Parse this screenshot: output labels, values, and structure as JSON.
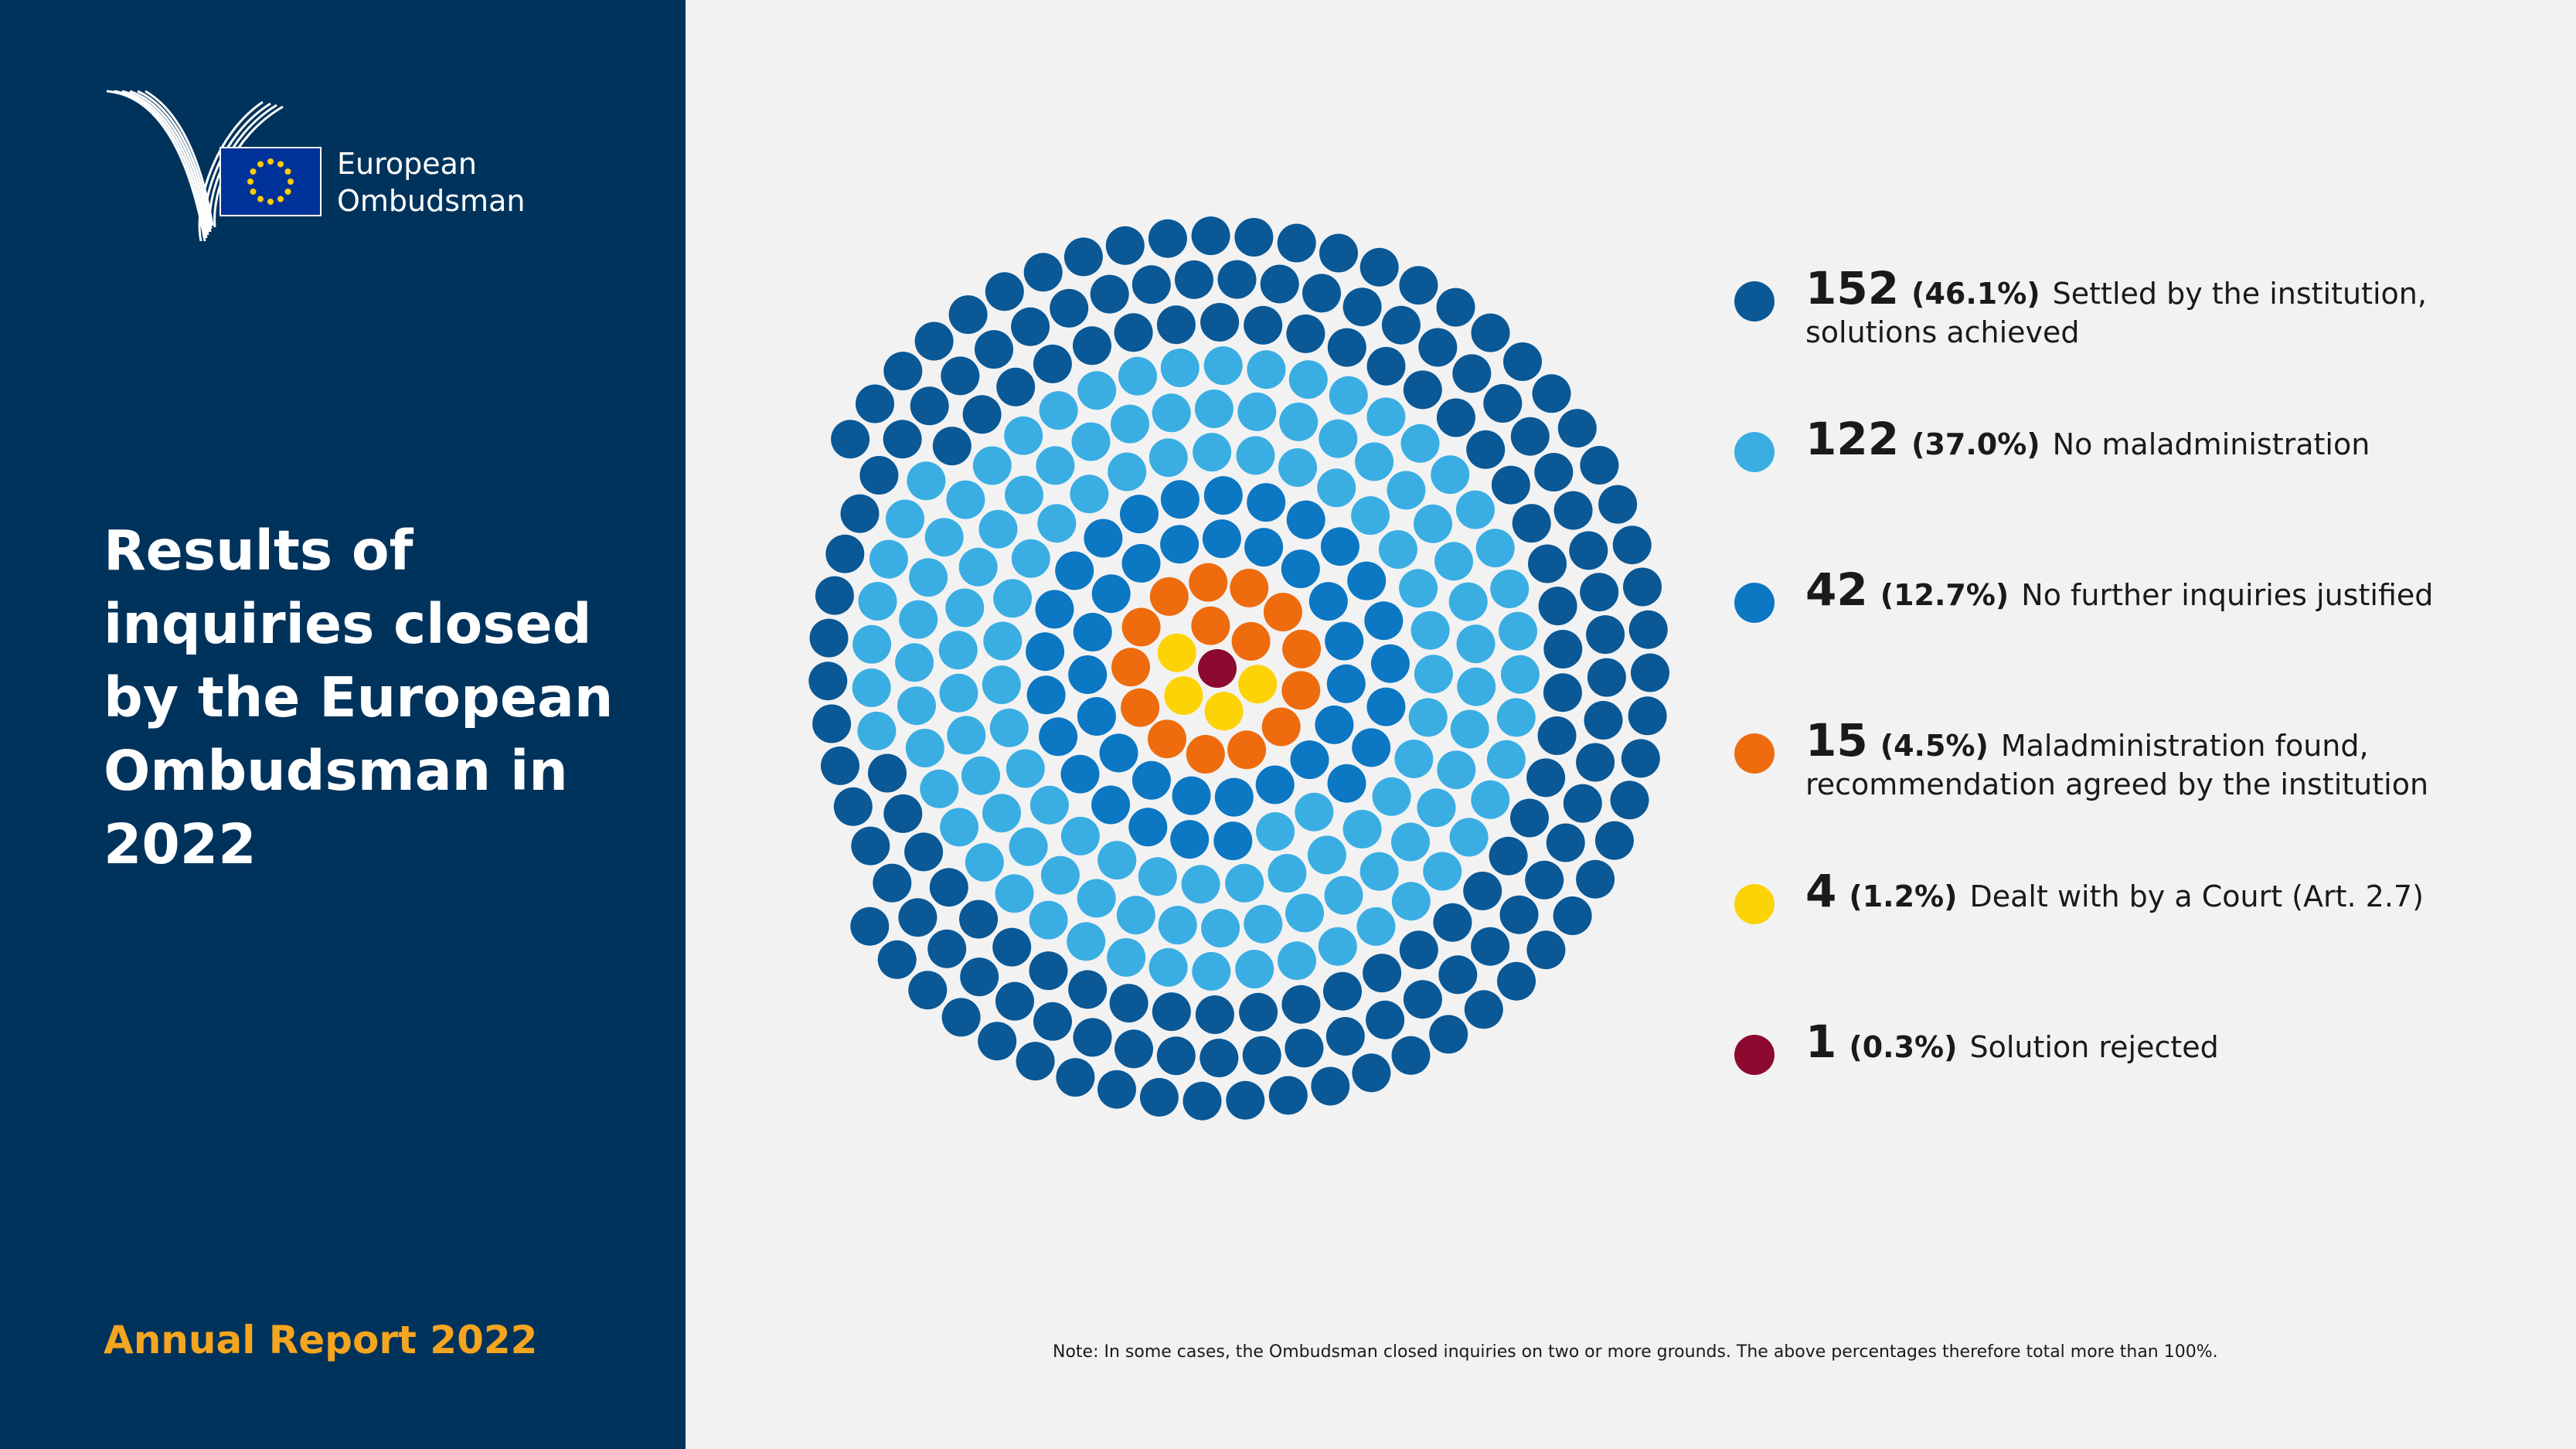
{
  "branding": {
    "org_line1": "European",
    "org_line2": "Ombudsman",
    "flag_icon": "eu-flag-icon",
    "logo_icon": "ombudsman-logo-icon"
  },
  "headline": "Results of inquiries closed by the European Ombudsman in 2022",
  "footer_title": "Annual Report 2022",
  "note": "Note: In some cases, the Ombudsman closed inquiries on two or more grounds. The above percentages therefore total more than 100%.",
  "colors": {
    "sidebar": "#00335c",
    "background": "#f2f2f2",
    "accent_gold": "#f5a51f"
  },
  "chart_data": {
    "type": "dot-matrix",
    "title": "",
    "categories": [
      {
        "count": 152,
        "percent": "(46.1%)",
        "label": "Settled by the institution, solutions achieved",
        "color": "#0a5896"
      },
      {
        "count": 122,
        "percent": "(37.0%)",
        "label": "No maladministration",
        "color": "#3aaee3"
      },
      {
        "count": 42,
        "percent": "(12.7%)",
        "label": "No further inquiries justified",
        "color": "#0c77c3"
      },
      {
        "count": 15,
        "percent": "(4.5%)",
        "label": "Maladministration found, recommendation agreed by the institution",
        "color": "#ee6c0e"
      },
      {
        "count": 4,
        "percent": "(1.2%)",
        "label": "Dealt with by a Court (Art. 2.7)",
        "color": "#fcd307"
      },
      {
        "count": 1,
        "percent": "(0.3%)",
        "label": "Solution rejected",
        "color": "#8c0a30"
      }
    ],
    "total_dots": 336
  }
}
